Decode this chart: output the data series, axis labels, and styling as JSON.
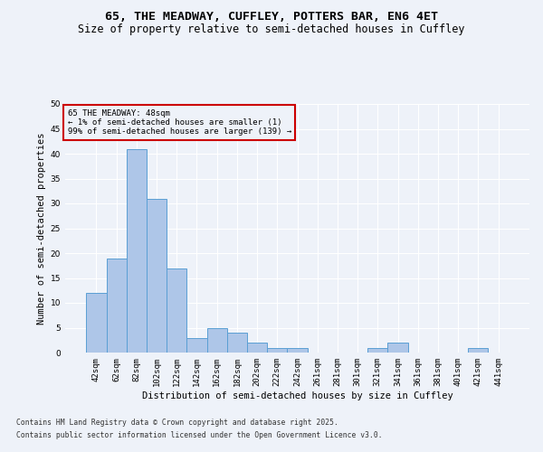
{
  "title_line1": "65, THE MEADWAY, CUFFLEY, POTTERS BAR, EN6 4ET",
  "title_line2": "Size of property relative to semi-detached houses in Cuffley",
  "xlabel": "Distribution of semi-detached houses by size in Cuffley",
  "ylabel": "Number of semi-detached properties",
  "annotation_title": "65 THE MEADWAY: 48sqm",
  "annotation_line2": "← 1% of semi-detached houses are smaller (1)",
  "annotation_line3": "99% of semi-detached houses are larger (139) →",
  "footer_line1": "Contains HM Land Registry data © Crown copyright and database right 2025.",
  "footer_line2": "Contains public sector information licensed under the Open Government Licence v3.0.",
  "categories": [
    "42sqm",
    "62sqm",
    "82sqm",
    "102sqm",
    "122sqm",
    "142sqm",
    "162sqm",
    "182sqm",
    "202sqm",
    "222sqm",
    "242sqm",
    "261sqm",
    "281sqm",
    "301sqm",
    "321sqm",
    "341sqm",
    "361sqm",
    "381sqm",
    "401sqm",
    "421sqm",
    "441sqm"
  ],
  "values": [
    12,
    19,
    41,
    31,
    17,
    3,
    5,
    4,
    2,
    1,
    1,
    0,
    0,
    0,
    1,
    2,
    0,
    0,
    0,
    1,
    0
  ],
  "bar_color": "#aec6e8",
  "bar_edge_color": "#5a9fd4",
  "annotation_box_edge_color": "#cc0000",
  "ylim": [
    0,
    50
  ],
  "yticks": [
    0,
    5,
    10,
    15,
    20,
    25,
    30,
    35,
    40,
    45,
    50
  ],
  "background_color": "#eef2f9",
  "plot_bg_color": "#eef2f9",
  "grid_color": "#ffffff",
  "title_fontsize": 9.5,
  "subtitle_fontsize": 8.5,
  "axis_label_fontsize": 7.5,
  "tick_fontsize": 6.5,
  "annotation_fontsize": 6.5,
  "footer_fontsize": 5.8
}
